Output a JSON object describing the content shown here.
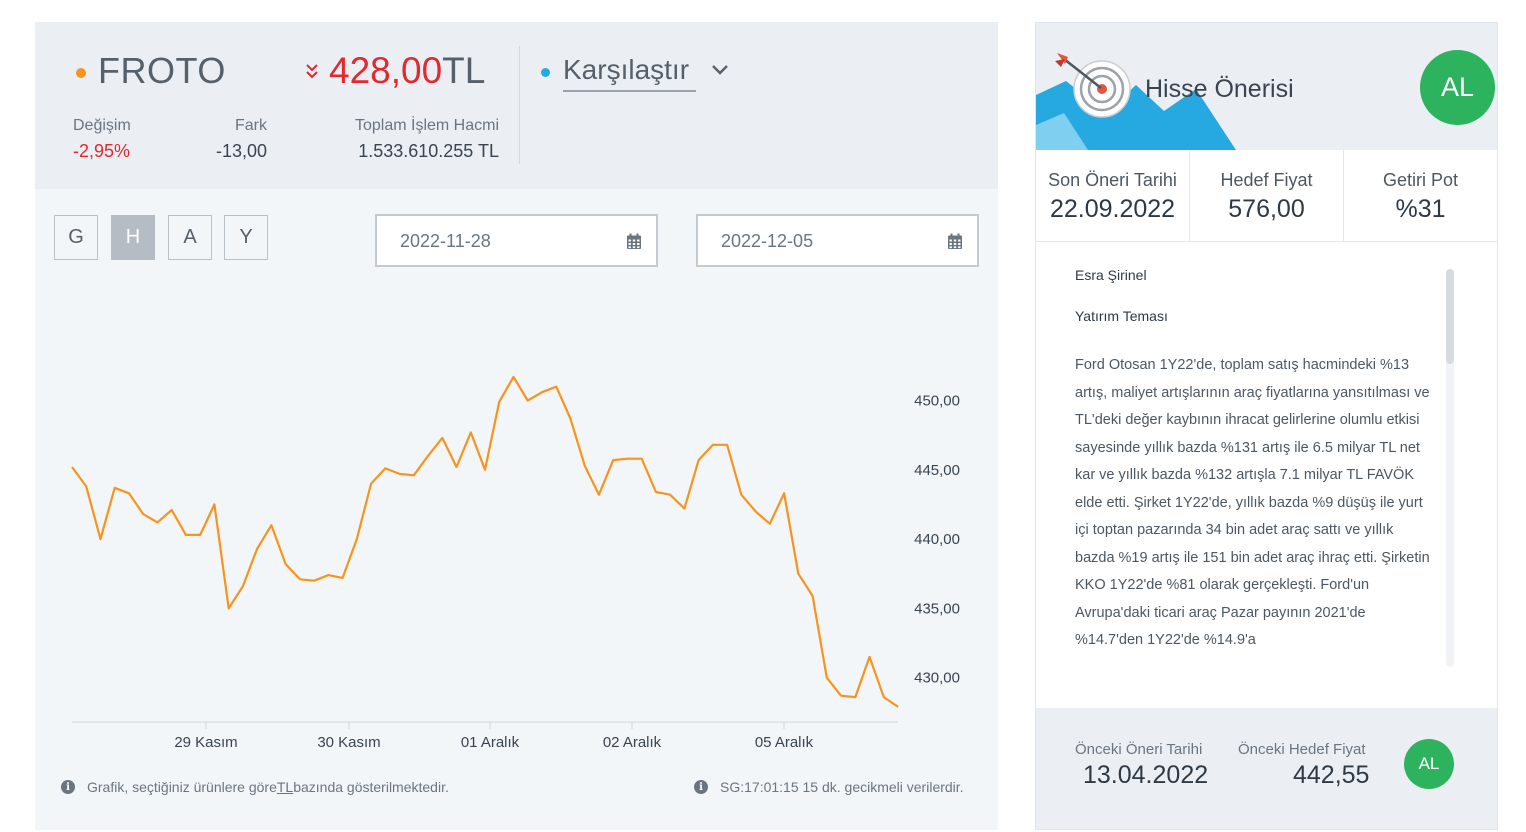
{
  "header": {
    "symbol": "FROTO",
    "price_value": "428,00",
    "price_unit": "TL",
    "compare_label": "Karşılaştır",
    "change_label": "Değişim",
    "change_value": "-2,95%",
    "diff_label": "Fark",
    "diff_value": "-13,00",
    "volume_label": "Toplam İşlem Hacmi",
    "volume_value": "1.533.610.255 TL"
  },
  "colors": {
    "symbol_dot": "#f7941d",
    "compare_dot": "#26a9e0",
    "negative": "#e1292f",
    "line": "#f7941d",
    "badge": "#2db35d"
  },
  "period_buttons": [
    {
      "label": "G",
      "active": false
    },
    {
      "label": "H",
      "active": true
    },
    {
      "label": "A",
      "active": false
    },
    {
      "label": "Y",
      "active": false
    }
  ],
  "date_range": {
    "start": "2022-11-28",
    "end": "2022-12-05",
    "icon": "calendar-icon"
  },
  "chart_data": {
    "type": "line",
    "title": "",
    "xlabel": "",
    "ylabel": "",
    "x_ticks": [
      "29 Kasım",
      "30 Kasım",
      "01 Aralık",
      "02 Aralık",
      "05 Aralık"
    ],
    "y_ticks": [
      "450,00",
      "445,00",
      "440,00",
      "435,00",
      "430,00"
    ],
    "y_tick_values": [
      450,
      445,
      440,
      435,
      430
    ],
    "ylim": [
      426.8,
      453.5
    ],
    "grid": false,
    "series": [
      {
        "values": [
          445.2,
          443.8,
          440.0,
          443.7,
          443.3,
          441.8,
          441.2,
          442.1,
          440.3,
          440.3,
          442.5,
          435.0,
          436.6,
          439.3,
          441.0,
          438.2,
          437.1,
          437.0,
          437.4,
          437.2,
          440.0,
          444.0,
          445.1,
          444.7,
          444.6,
          446.0,
          447.3,
          445.2,
          447.7,
          445.0,
          449.9,
          451.7,
          450.0,
          450.6,
          451.0,
          448.7,
          445.3,
          443.2,
          445.7,
          445.8,
          445.8,
          443.4,
          443.2,
          442.2,
          445.7,
          446.8,
          446.8,
          443.2,
          442.0,
          441.1,
          443.3,
          437.5,
          435.9,
          430.0,
          428.7,
          428.6,
          431.5,
          428.6,
          427.9
        ]
      }
    ]
  },
  "footnotes": {
    "left_pre": "Grafik, seçtiğiniz ürünlere göre ",
    "left_unit": "TL",
    "left_post": " bazında gösterilmektedir.",
    "right": "SG:17:01:15 15 dk. gecikmeli verilerdir."
  },
  "recommendation": {
    "title": "Hisse Önerisi",
    "badge": "AL",
    "icon": "target-icon",
    "metrics": [
      {
        "label": "Son Öneri Tarihi",
        "value": "22.09.2022"
      },
      {
        "label": "Hedef Fiyat",
        "value": "576,00"
      },
      {
        "label": "Getiri Pot",
        "value": "%31"
      }
    ],
    "author": "Esra Şirinel",
    "theme_title": "Yatırım Teması",
    "body": "Ford Otosan 1Y22'de, toplam satış hacmindeki %13 artış, maliyet artışlarının araç fiyatlarına yansıtılması ve TL'deki değer kaybının ihracat gelirlerine olumlu etkisi sayesinde yıllık bazda %131 artış ile 6.5 milyar TL net kar ve yıllık bazda %132 artışla 7.1 milyar TL FAVÖK elde etti. Şirket 1Y22'de, yıllık bazda %9 düşüş ile yurt içi toptan pazarında 34 bin adet araç sattı ve yıllık bazda %19 artış ile 151 bin adet araç ihraç etti. Şirketin KKO 1Y22'de %81 olarak gerçekleşti. Ford'un Avrupa'daki ticari araç Pazar payının 2021'de %14.7'den 1Y22'de %14.9'a",
    "prev_date_label": "Önceki Öneri Tarihi",
    "prev_date": "13.04.2022",
    "prev_target_label": "Önceki Hedef Fiyat",
    "prev_target": "442,55",
    "prev_badge": "AL"
  }
}
